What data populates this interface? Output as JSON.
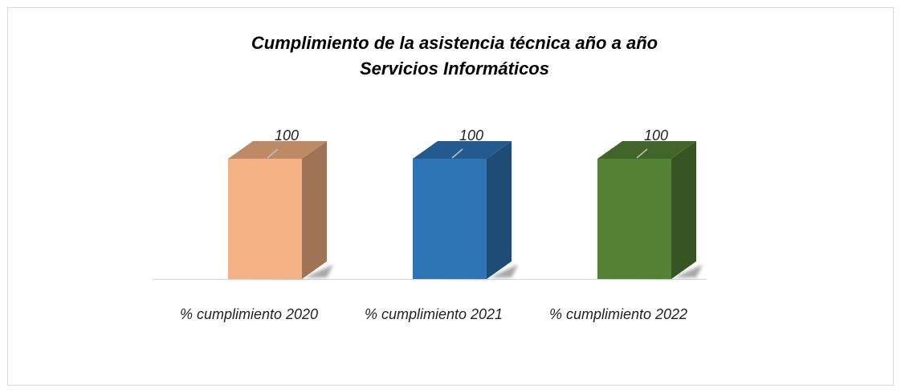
{
  "chart_data": {
    "type": "bar3d",
    "title": "Cumplimiento de la asistencia técnica año a año",
    "subtitle": "Servicios Informáticos",
    "categories": [
      "% cumplimiento 2020",
      "% cumplimiento 2021",
      "% cumplimiento 2022"
    ],
    "values": [
      100,
      100,
      100
    ],
    "colors": [
      "#f4b183",
      "#2e75b6",
      "#548235"
    ]
  }
}
